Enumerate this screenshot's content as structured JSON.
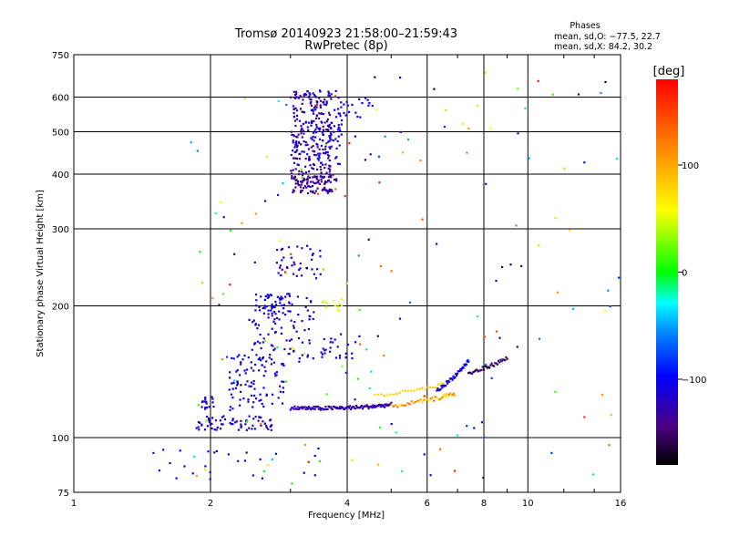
{
  "chart_data": {
    "type": "scatter",
    "title": "Tromsø 20140923 21:58:00–21:59:43",
    "subtitle": "RwPretec (8p)",
    "xlabel": "Frequency [MHz]",
    "ylabel": "Stationary phase Virtual Height [km]",
    "x_scale": "log",
    "y_scale": "log",
    "xlim": [
      1,
      16
    ],
    "ylim": [
      75,
      750
    ],
    "x_ticks": [
      1,
      2,
      4,
      6,
      8,
      10,
      16
    ],
    "x_tick_labels": [
      "1",
      "2",
      "4",
      "6",
      "8",
      "10",
      "16"
    ],
    "y_ticks": [
      75,
      100,
      200,
      300,
      400,
      500,
      600,
      750
    ],
    "y_tick_labels": [
      "75",
      "100",
      "200",
      "300",
      "400",
      "500",
      "600",
      "750"
    ],
    "grid": true,
    "stats": {
      "title": "Phases",
      "line_o": "mean, sd,O: −77.5, 22.7",
      "line_x": "mean, sd,X:  84.2, 30.2"
    },
    "colorbar": {
      "label": "[deg]",
      "range": [
        -180,
        180
      ],
      "ticks": [
        100,
        0,
        -100
      ],
      "tick_labels": [
        "100",
        "0",
        "−100"
      ]
    },
    "clusters": [
      {
        "f": [
          1.85,
          2.75
        ],
        "h": [
          104,
          112
        ],
        "phase": [
          -130,
          -110
        ],
        "n": 70
      },
      {
        "f": [
          1.9,
          2.05
        ],
        "h": [
          114,
          124
        ],
        "phase": [
          -130,
          -110
        ],
        "n": 16
      },
      {
        "f": [
          2.2,
          2.9
        ],
        "h": [
          115,
          155
        ],
        "phase": [
          -125,
          -95
        ],
        "n": 90
      },
      {
        "f": [
          2.4,
          3.4
        ],
        "h": [
          145,
          210
        ],
        "phase": [
          -130,
          -95
        ],
        "n": 100
      },
      {
        "f": [
          2.5,
          3.0
        ],
        "h": [
          195,
          215
        ],
        "phase": [
          -115,
          -95
        ],
        "n": 35
      },
      {
        "f": [
          2.8,
          3.5
        ],
        "h": [
          230,
          275
        ],
        "phase": [
          -135,
          -105
        ],
        "n": 40
      },
      {
        "f": [
          3.5,
          4.0
        ],
        "h": [
          195,
          210
        ],
        "phase": [
          40,
          70
        ],
        "n": 12
      },
      {
        "f": [
          3.0,
          3.7
        ],
        "h": [
          360,
          620
        ],
        "phase": [
          -150,
          -110
        ],
        "n": 260
      },
      {
        "f": [
          3.2,
          3.9
        ],
        "h": [
          420,
          630
        ],
        "phase": [
          -115,
          -95
        ],
        "n": 90
      },
      {
        "f": [
          3.0,
          3.8
        ],
        "h": [
          365,
          400
        ],
        "phase": [
          -155,
          -130
        ],
        "n": 50
      },
      {
        "f": [
          3.8,
          4.5
        ],
        "h": [
          540,
          620
        ],
        "phase": [
          -115,
          -95
        ],
        "n": 20
      },
      {
        "f": [
          3.5,
          4.3
        ],
        "h": [
          150,
          175
        ],
        "phase": [
          -120,
          -100
        ],
        "n": 25
      },
      {
        "f": [
          1.4,
          3.6
        ],
        "h": [
          80,
          95
        ],
        "phase": [
          -115,
          -95
        ],
        "n": 25
      },
      {
        "f": [
          1.8,
          16
        ],
        "h": [
          78,
          700
        ],
        "phase": [
          -180,
          180
        ],
        "n": 170
      }
    ],
    "traces": [
      {
        "from": [
          3.0,
          117
        ],
        "mid": [
          4.0,
          116
        ],
        "to": [
          5.0,
          119
        ],
        "phase": [
          -140,
          -120
        ],
        "n": 110
      },
      {
        "from": [
          5.0,
          118
        ],
        "mid": [
          6.2,
          122
        ],
        "to": [
          6.9,
          126
        ],
        "phase": [
          50,
          140
        ],
        "n": 40
      },
      {
        "from": [
          6.3,
          128
        ],
        "mid": [
          6.9,
          137
        ],
        "to": [
          7.4,
          150
        ],
        "phase": [
          -130,
          -95
        ],
        "n": 40
      },
      {
        "from": [
          7.4,
          140
        ],
        "mid": [
          8.2,
          145
        ],
        "to": [
          9.0,
          152
        ],
        "phase": [
          -175,
          -140
        ],
        "n": 35
      },
      {
        "from": [
          4.6,
          125
        ],
        "mid": [
          5.6,
          127
        ],
        "to": [
          6.5,
          132
        ],
        "phase": [
          70,
          90
        ],
        "n": 25
      }
    ]
  }
}
